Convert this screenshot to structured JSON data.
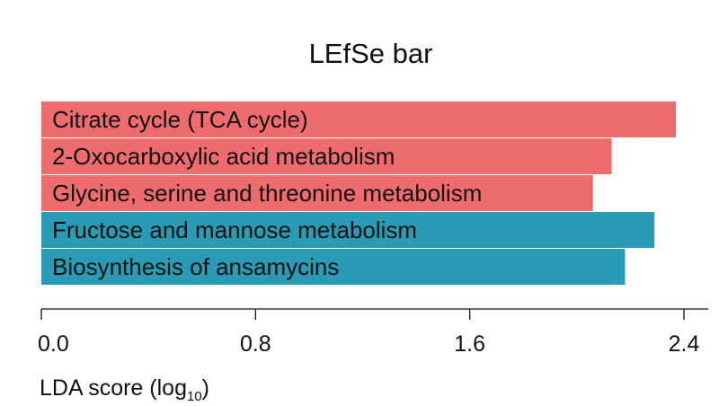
{
  "chart_data": {
    "type": "bar",
    "orientation": "horizontal",
    "title": "LEfSe bar",
    "xlabel_main": "LDA score (",
    "xlabel_base": "log",
    "xlabel_sub": "10",
    "xlabel_close": ")",
    "xlim": [
      0,
      2.4
    ],
    "ticks": [
      {
        "value": 0.0,
        "label": "0.0"
      },
      {
        "value": 0.8,
        "label": "0.8"
      },
      {
        "value": 1.6,
        "label": "1.6"
      },
      {
        "value": 2.4,
        "label": "2.4"
      }
    ],
    "bars": [
      {
        "category": "Citrate cycle (TCA cycle)",
        "value": 2.37,
        "color": "#ee6b6e"
      },
      {
        "category": "2-Oxocarboxylic acid metabolism",
        "value": 2.13,
        "color": "#ee6b6e"
      },
      {
        "category": "Glycine, serine and threonine metabolism",
        "value": 2.06,
        "color": "#ee6b6e"
      },
      {
        "category": "Fructose and mannose metabolism",
        "value": 2.29,
        "color": "#2a9bb4"
      },
      {
        "category": "Biosynthesis of ansamycins",
        "value": 2.18,
        "color": "#2a9bb4"
      }
    ],
    "grid": false,
    "legend": "none"
  }
}
